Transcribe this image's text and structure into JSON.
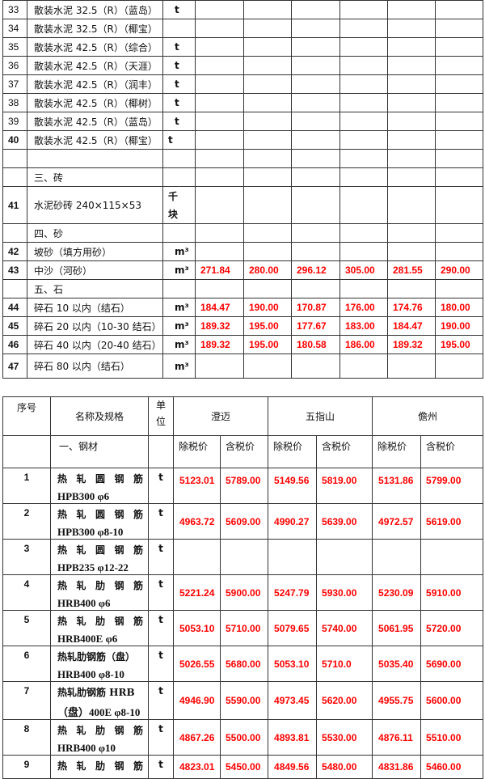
{
  "table1": {
    "rows": [
      {
        "no": "33",
        "name": "散装水泥 32.5（R）（蓝岛）",
        "unit": "t",
        "prices": []
      },
      {
        "no": "34",
        "name": "散装水泥 32.5（R）（椰宝）",
        "unit": "",
        "prices": []
      },
      {
        "no": "35",
        "name": "散装水泥 42.5（R）（综合）",
        "unit": "t",
        "prices": []
      },
      {
        "no": "36",
        "name": "散装水泥 42.5（R）（天涯）",
        "unit": "t",
        "prices": []
      },
      {
        "no": "37",
        "name": "散装水泥 42.5（R）（润丰）",
        "unit": "t",
        "prices": []
      },
      {
        "no": "38",
        "name": "散装水泥 42.5（R）（椰树）",
        "unit": "t",
        "prices": []
      },
      {
        "no": "39",
        "name": "散装水泥 42.5（R）（蓝岛）",
        "unit": "t",
        "prices": []
      },
      {
        "no": "40",
        "name": "散装水泥 42.5（R）（椰宝）",
        "unit": "t",
        "prices": []
      },
      {
        "no": "",
        "name": "",
        "unit": "",
        "prices": []
      },
      {
        "no": "",
        "name": "三、砖",
        "unit": "",
        "prices": []
      },
      {
        "no": "41",
        "name": "水泥砂砖  240×115×53",
        "unit": "千\n块",
        "prices": []
      },
      {
        "no": "",
        "name": "四、砂",
        "unit": "",
        "prices": []
      },
      {
        "no": "42",
        "name": "坡砂（填方用砂）",
        "unit": "m³",
        "prices": []
      },
      {
        "no": "43",
        "name": "中沙（河砂）",
        "unit": "m³",
        "prices": [
          "271.84",
          "280.00",
          "296.12",
          "305.00",
          "281.55",
          "290.00"
        ]
      },
      {
        "no": "",
        "name": "五、石",
        "unit": "",
        "prices": []
      },
      {
        "no": "44",
        "name": "碎石 10 以内（结石）",
        "unit": "m³",
        "prices": [
          "184.47",
          "190.00",
          "170.87",
          "176.00",
          "174.76",
          "180.00"
        ]
      },
      {
        "no": "45",
        "name": "碎石 20 以内（10-30 结石）",
        "unit": "m³",
        "prices": [
          "189.32",
          "195.00",
          "177.67",
          "183.00",
          "184.47",
          "190.00"
        ]
      },
      {
        "no": "46",
        "name": "碎石 40 以内（20-40 结石）",
        "unit": "m³",
        "prices": [
          "189.32",
          "195.00",
          "180.58",
          "186.00",
          "189.32",
          "195.00"
        ]
      },
      {
        "no": "47",
        "name": "碎石 80 以内（结石）",
        "unit": "m³",
        "prices": []
      }
    ]
  },
  "table2": {
    "header": {
      "no": "序号",
      "name": "名称及规格",
      "unit": "单\n位",
      "regions": [
        "澄迈",
        "五指山",
        "儋州"
      ]
    },
    "subheader": {
      "section": "一、钢材",
      "cols": [
        "除税价",
        "含税价",
        "除税价",
        "含税价",
        "除税价",
        "含税价"
      ]
    },
    "rows": [
      {
        "no": "1",
        "name1": "热轧圆钢筋",
        "name2": "HPB300 φ6",
        "unit": "t",
        "prices": [
          "5123.01",
          "5789.00",
          "5149.56",
          "5819.00",
          "5131.86",
          "5799.00"
        ]
      },
      {
        "no": "2",
        "name1": "热轧圆钢筋",
        "name2": "HPB300 φ8-10",
        "unit": "t",
        "prices": [
          "4963.72",
          "5609.00",
          "4990.27",
          "5639.00",
          "4972.57",
          "5619.00"
        ]
      },
      {
        "no": "3",
        "name1": "热轧圆钢筋",
        "name2": "HPB235 φ12-22",
        "unit": "t",
        "prices": []
      },
      {
        "no": "4",
        "name1": "热轧肋钢筋",
        "name2": "HRB400 φ6",
        "unit": "t",
        "prices": [
          "5221.24",
          "5900.00",
          "5247.79",
          "5930.00",
          "5230.09",
          "5910.00"
        ]
      },
      {
        "no": "5",
        "name1": "热轧肋钢筋",
        "name2": "HRB400E φ6",
        "unit": "t",
        "prices": [
          "5053.10",
          "5710.00",
          "5079.65",
          "5740.00",
          "5061.95",
          "5720.00"
        ]
      },
      {
        "no": "6",
        "name1": "热轧肋钢筋（盘）",
        "name2": "HRB400 φ8-10",
        "unit": "t",
        "prices": [
          "5026.55",
          "5680.00",
          "5053.10",
          "5710.0",
          "5035.40",
          "5690.00"
        ]
      },
      {
        "no": "7",
        "name1": "热轧肋钢筋 HRB",
        "name2": "（盘）400E φ8-10",
        "unit": "t",
        "prices": [
          "4946.90",
          "5590.00",
          "4973.45",
          "5620.00",
          "4955.75",
          "5600.00"
        ]
      },
      {
        "no": "8",
        "name1": "热轧肋钢筋",
        "name2": "HRB400 φ10",
        "unit": "t",
        "prices": [
          "4867.26",
          "5500.00",
          "4893.81",
          "5530.00",
          "4876.11",
          "5510.00"
        ]
      },
      {
        "no": "9",
        "name1": "热轧肋钢筋",
        "name2": "",
        "unit": "t",
        "prices": [
          "4823.01",
          "5450.00",
          "4849.56",
          "5480.00",
          "4831.86",
          "5460.00"
        ]
      }
    ]
  },
  "colors": {
    "price": "#ff0000",
    "border": "#333333"
  }
}
